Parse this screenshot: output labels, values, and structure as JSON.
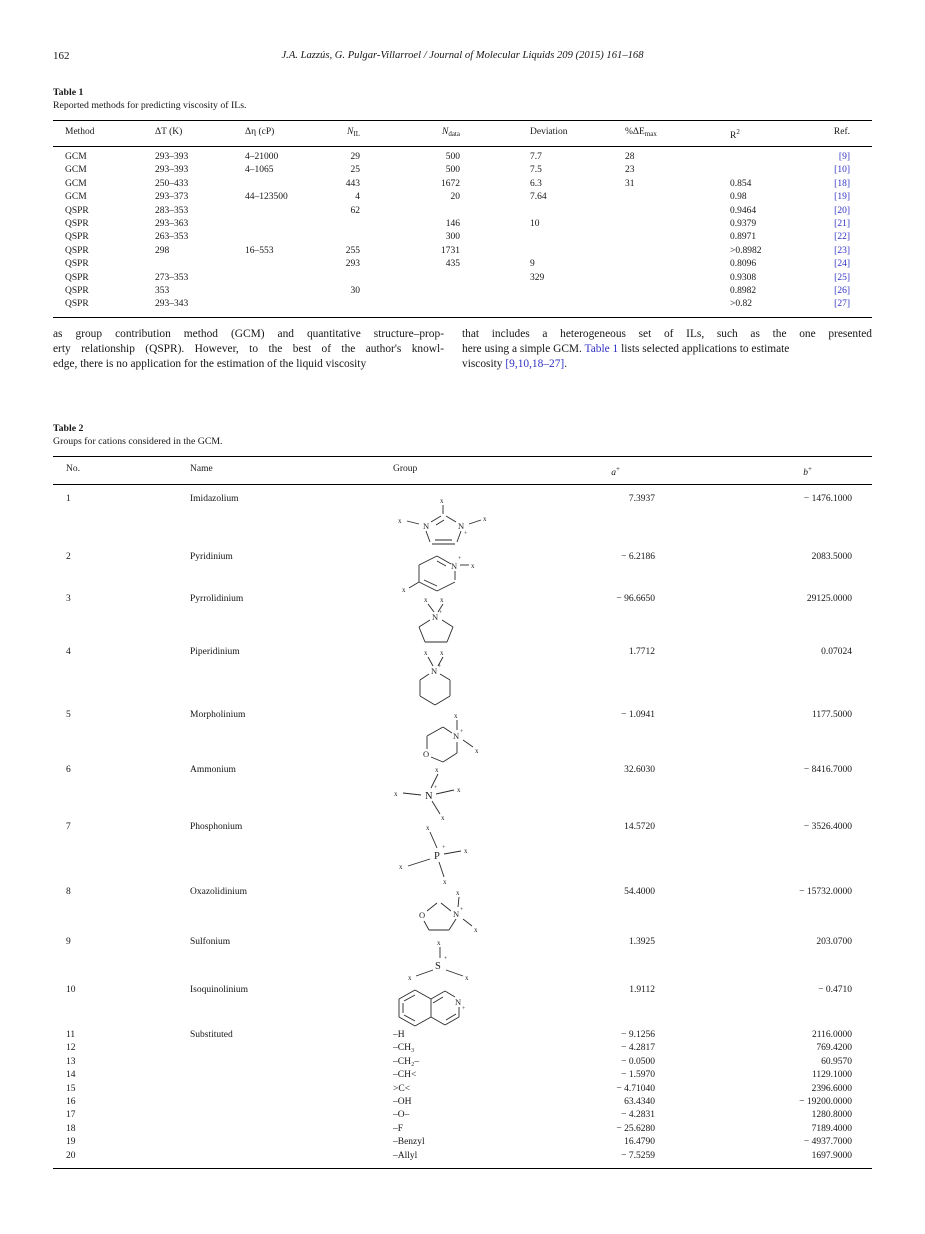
{
  "page": {
    "number": "162",
    "running_head": "J.A. Lazzús, G. Pulgar-Villarroel / Journal of Molecular Liquids 209 (2015) 161–168"
  },
  "table1": {
    "label": "Table 1",
    "caption": "Reported methods for predicting viscosity of ILs.",
    "headers": {
      "method": "Method",
      "dt": "ΔT (K)",
      "deta": "Δη (cP)",
      "nil_pre": "N",
      "nil_sub": "IL",
      "ndata_pre": "N",
      "ndata_sub": "data",
      "deviation": "Deviation",
      "de_pre": "%ΔE",
      "de_sub": "max",
      "r2_pre": "R",
      "r2_sup": "2",
      "ref": "Ref."
    },
    "rows": [
      {
        "cells": [
          "GCM",
          "293–393",
          "4–21000",
          "29",
          "500",
          "7.7",
          "28",
          "",
          "[9]"
        ]
      },
      {
        "cells": [
          "GCM",
          "293–393",
          "4–1065",
          "25",
          "500",
          "7.5",
          "23",
          "",
          "[10]"
        ]
      },
      {
        "cells": [
          "GCM",
          "250–433",
          "",
          "443",
          "1672",
          "6.3",
          "31",
          "0.854",
          "[18]"
        ]
      },
      {
        "cells": [
          "GCM",
          "293–373",
          "44–123500",
          "4",
          "20",
          "7.64",
          "",
          "0.98",
          "[19]"
        ]
      },
      {
        "cells": [
          "QSPR",
          "283–353",
          "",
          "62",
          "",
          "",
          "",
          "0.9464",
          "[20]"
        ]
      },
      {
        "cells": [
          "QSPR",
          "293–363",
          "",
          "",
          "146",
          "10",
          "",
          "0.9379",
          "[21]"
        ]
      },
      {
        "cells": [
          "QSPR",
          "263–353",
          "",
          "",
          "300",
          "",
          "",
          "0.8971",
          "[22]"
        ]
      },
      {
        "cells": [
          "QSPR",
          "298",
          "16–553",
          "255",
          "1731",
          "",
          "",
          ">0.8982",
          "[23]"
        ]
      },
      {
        "cells": [
          "QSPR",
          "",
          "",
          "293",
          "435",
          "9",
          "",
          "0.8096",
          "[24]"
        ]
      },
      {
        "cells": [
          "QSPR",
          "273–353",
          "",
          "",
          "",
          "329",
          "",
          "0.9308",
          "[25]"
        ]
      },
      {
        "cells": [
          "QSPR",
          "353",
          "",
          "30",
          "",
          "",
          "",
          "0.8982",
          "[26]"
        ]
      },
      {
        "cells": [
          "QSPR",
          "293–343",
          "",
          "",
          "",
          "",
          "",
          ">0.82",
          "[27]"
        ]
      }
    ]
  },
  "body_text": {
    "left_lines": [
      "as group contribution method (GCM) and quantitative structure–prop-",
      "erty relationship (QSPR). However, to the best of the author's knowl-",
      "edge, there is no application for the estimation of the liquid viscosity"
    ],
    "right_line1": "that includes a heterogeneous set of ILs, such as the one presented",
    "right_line2_pre": "here using a simple GCM. ",
    "link_table1": "Table 1",
    "right_line2_post": " lists selected applications to estimate",
    "right_line3_pre": "viscosity ",
    "link_refs": "[9,10,18–27]",
    "right_line3_post": "."
  },
  "table2": {
    "label": "Table 2",
    "caption": "Groups for cations considered in the GCM.",
    "headers": {
      "no": "No.",
      "name": "Name",
      "group": "Group",
      "a_pre": "a",
      "a_sup": "+",
      "b_pre": "b",
      "b_sup": "+"
    },
    "cation_rows": [
      {
        "no": "1",
        "name": "Imidazolium",
        "structure": "imidazolium",
        "a": "7.3937",
        "b": "− 1476.1000"
      },
      {
        "no": "2",
        "name": "Pyridinium",
        "structure": "pyridinium",
        "a": "− 6.2186",
        "b": "2083.5000"
      },
      {
        "no": "3",
        "name": "Pyrrolidinium",
        "structure": "pyrrolidinium",
        "a": "− 96.6650",
        "b": "29125.0000"
      },
      {
        "no": "4",
        "name": "Piperidinium",
        "structure": "piperidinium",
        "a": "1.7712",
        "b": "0.07024"
      },
      {
        "no": "5",
        "name": "Morpholinium",
        "structure": "morpholinium",
        "a": "− 1.0941",
        "b": "1177.5000"
      },
      {
        "no": "6",
        "name": "Ammonium",
        "structure": "ammonium",
        "a": "32.6030",
        "b": "− 8416.7000"
      },
      {
        "no": "7",
        "name": "Phosphonium",
        "structure": "phosphonium",
        "a": "14.5720",
        "b": "− 3526.4000"
      },
      {
        "no": "8",
        "name": "Oxazolidinium",
        "structure": "oxazolidinium",
        "a": "54.4000",
        "b": "− 15732.0000"
      },
      {
        "no": "9",
        "name": "Sulfonium",
        "structure": "sulfonium",
        "a": "1.3925",
        "b": "203.0700"
      },
      {
        "no": "10",
        "name": "Isoquinolinium",
        "structure": "isoquinolinium",
        "a": "1.9112",
        "b": "− 0.4710"
      }
    ],
    "substituted_rows": [
      {
        "no": "11",
        "name": "Substituted",
        "group": "–H",
        "a": "− 9.1256",
        "b": "2116.0000"
      },
      {
        "no": "12",
        "name": "",
        "group": "–CH₃",
        "a": "− 4.2817",
        "b": "769.4200"
      },
      {
        "no": "13",
        "name": "",
        "group": "–CH₂–",
        "a": "− 0.0500",
        "b": "60.9570"
      },
      {
        "no": "14",
        "name": "",
        "group": "–CH<",
        "a": "− 1.5970",
        "b": "1129.1000"
      },
      {
        "no": "15",
        "name": "",
        "group": ">C<",
        "a": "− 4.71040",
        "b": "2396.6000"
      },
      {
        "no": "16",
        "name": "",
        "group": "–OH",
        "a": "63.4340",
        "b": "− 19200.0000"
      },
      {
        "no": "17",
        "name": "",
        "group": "–O–",
        "a": "− 4.2831",
        "b": "1280.8000"
      },
      {
        "no": "18",
        "name": "",
        "group": "–F",
        "a": "− 25.6280",
        "b": "7189.4000"
      },
      {
        "no": "19",
        "name": "",
        "group": "–Benzyl",
        "a": "16.4790",
        "b": "− 4937.7000"
      },
      {
        "no": "20",
        "name": "",
        "group": "–Allyl",
        "a": "− 7.5259",
        "b": "1697.9000"
      }
    ]
  },
  "symbols": {
    "x": "x",
    "plus": "+",
    "N": "N",
    "O": "O",
    "S": "S",
    "P": "P"
  }
}
